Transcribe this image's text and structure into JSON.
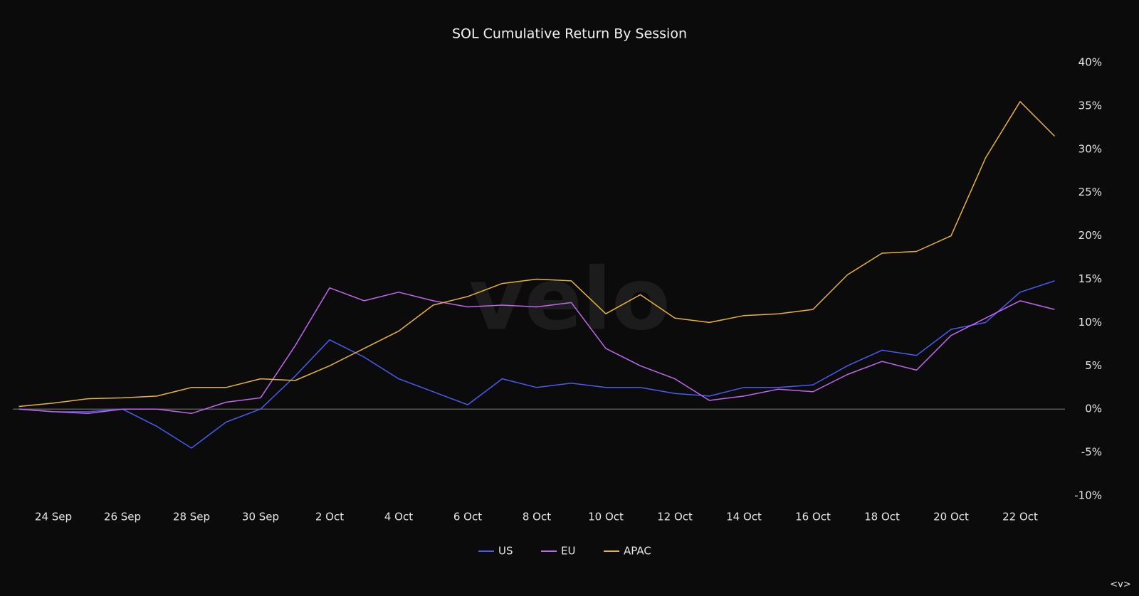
{
  "chart_data": {
    "type": "line",
    "title": "SOL Cumulative Return By Session",
    "watermark": "velo",
    "corner_label": "<v>",
    "categories": [
      null,
      "24 Sep",
      null,
      "26 Sep",
      null,
      "28 Sep",
      null,
      "30 Sep",
      null,
      "2 Oct",
      null,
      "4 Oct",
      null,
      "6 Oct",
      null,
      "8 Oct",
      null,
      "10 Oct",
      null,
      "12 Oct",
      null,
      "14 Oct",
      null,
      "16 Oct",
      null,
      "18 Oct",
      null,
      "20 Oct",
      null,
      "22 Oct",
      null
    ],
    "series": [
      {
        "name": "US",
        "color": "#4a5cf0",
        "values": [
          0,
          -0.3,
          -0.3,
          0,
          -2,
          -4.5,
          -1.5,
          0,
          3.8,
          8,
          6,
          3.5,
          2,
          0.5,
          3.5,
          2.5,
          3,
          2.5,
          2.5,
          1.8,
          1.5,
          2.5,
          2.5,
          2.8,
          5,
          6.8,
          6.2,
          9.2,
          10,
          13.5,
          14.8
        ]
      },
      {
        "name": "EU",
        "color": "#c266f0",
        "values": [
          0,
          -0.3,
          -0.5,
          0,
          0,
          -0.5,
          0.8,
          1.3,
          7.3,
          14,
          12.5,
          13.5,
          12.5,
          11.8,
          12,
          11.8,
          12.3,
          7,
          5,
          3.5,
          1,
          1.5,
          2.3,
          2,
          4,
          5.5,
          4.5,
          8.5,
          10.5,
          12.5,
          11.5
        ]
      },
      {
        "name": "APAC",
        "color": "#e8b33a",
        "values": [
          0.3,
          0.7,
          1.2,
          1.3,
          1.5,
          2.5,
          2.5,
          3.5,
          3.3,
          5,
          7,
          9,
          12,
          13,
          14.5,
          15,
          14.8,
          11,
          13.2,
          10.5,
          10,
          10.8,
          11,
          11.5,
          15.5,
          18,
          18.2,
          20,
          29,
          35.5,
          31.5
        ]
      }
    ],
    "ylim": [
      -10,
      40
    ],
    "yticks": [
      {
        "value": -10,
        "label": "-10%"
      },
      {
        "value": -5,
        "label": "-5%"
      },
      {
        "value": 0,
        "label": "0%"
      },
      {
        "value": 5,
        "label": "5%"
      },
      {
        "value": 10,
        "label": "10%"
      },
      {
        "value": 15,
        "label": "15%"
      },
      {
        "value": 20,
        "label": "20%"
      },
      {
        "value": 25,
        "label": "25%"
      },
      {
        "value": 30,
        "label": "30%"
      },
      {
        "value": 35,
        "label": "35%"
      },
      {
        "value": 40,
        "label": "40%"
      }
    ],
    "zero_line": true,
    "legend": "bottom"
  }
}
